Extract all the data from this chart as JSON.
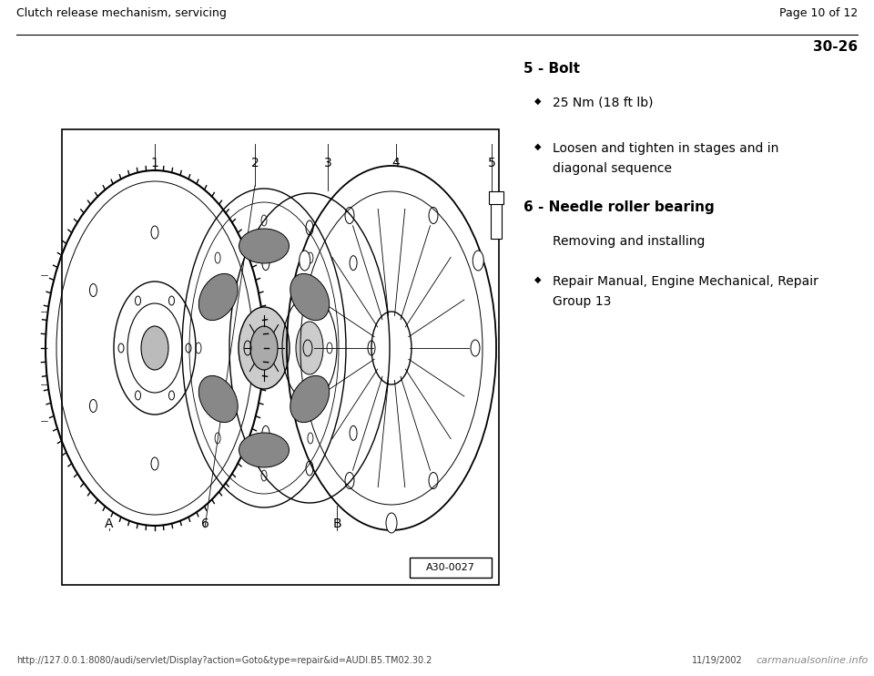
{
  "bg_color": "#ffffff",
  "header_left": "Clutch release mechanism, servicing",
  "header_right": "Page 10 of 12",
  "page_number": "30-26",
  "footer_url": "http://127.0.0.1:8080/audi/servlet/Display?action=Goto&type=repair&id=AUDI.B5.TM02.30.2",
  "footer_right": "11/19/2002",
  "footer_logo": "carmanualsonline.info",
  "diagram_label": "A30-0027",
  "item5_header": "5 - Bolt",
  "item5_bullet1": "25 Nm (18 ft lb)",
  "item5_bullet2_line1": "Loosen and tighten in stages and in",
  "item5_bullet2_line2": "diagonal sequence",
  "item6_header": "6 - Needle roller bearing",
  "item6_sub": "Removing and installing",
  "item6_bullet1_line1": "Repair Manual, Engine Mechanical, Repair",
  "item6_bullet1_line2": "Group 13",
  "text_color": "#000000",
  "box_color": "#000000"
}
